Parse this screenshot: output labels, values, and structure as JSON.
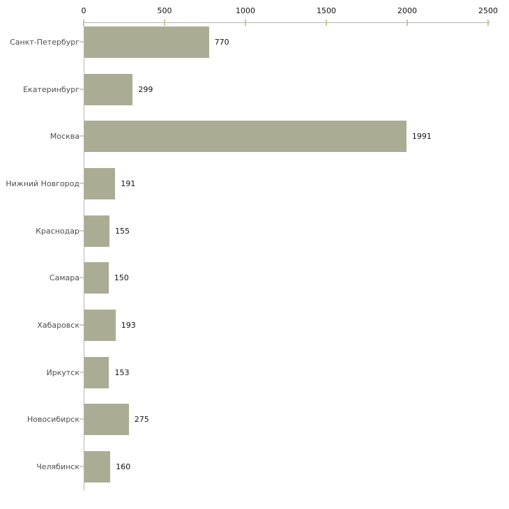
{
  "chart_data": {
    "type": "bar",
    "orientation": "horizontal",
    "title": "",
    "categories": [
      "Санкт-Петербург",
      "Екатеринбург",
      "Москва",
      "Нижний Новгород",
      "Краснодар",
      "Самара",
      "Хабаровск",
      "Иркутск",
      "Новосибирск",
      "Челябинск"
    ],
    "values": [
      770,
      299,
      1991,
      191,
      155,
      150,
      193,
      153,
      275,
      160
    ],
    "value_labels": [
      "770",
      "299",
      "1991",
      "191",
      "155",
      "150",
      "193",
      "153",
      "275",
      "160"
    ],
    "xlim": [
      0,
      2500
    ],
    "x_ticks": [
      0,
      500,
      1000,
      1500,
      2000,
      2500
    ],
    "x_tick_labels": [
      "0",
      "500",
      "1000",
      "1500",
      "2000",
      "2500"
    ],
    "axis_position": "top",
    "legend": "none",
    "grid": false,
    "colors": {
      "bar_fill": "#aaad93",
      "axis_line": "#b3b3b3",
      "x_tick_mark": "#c6c795",
      "y_tick_mark": "#d5cdba",
      "category_text": "#4d4d4d",
      "value_text": "#111111",
      "background": "#ffffff"
    }
  }
}
